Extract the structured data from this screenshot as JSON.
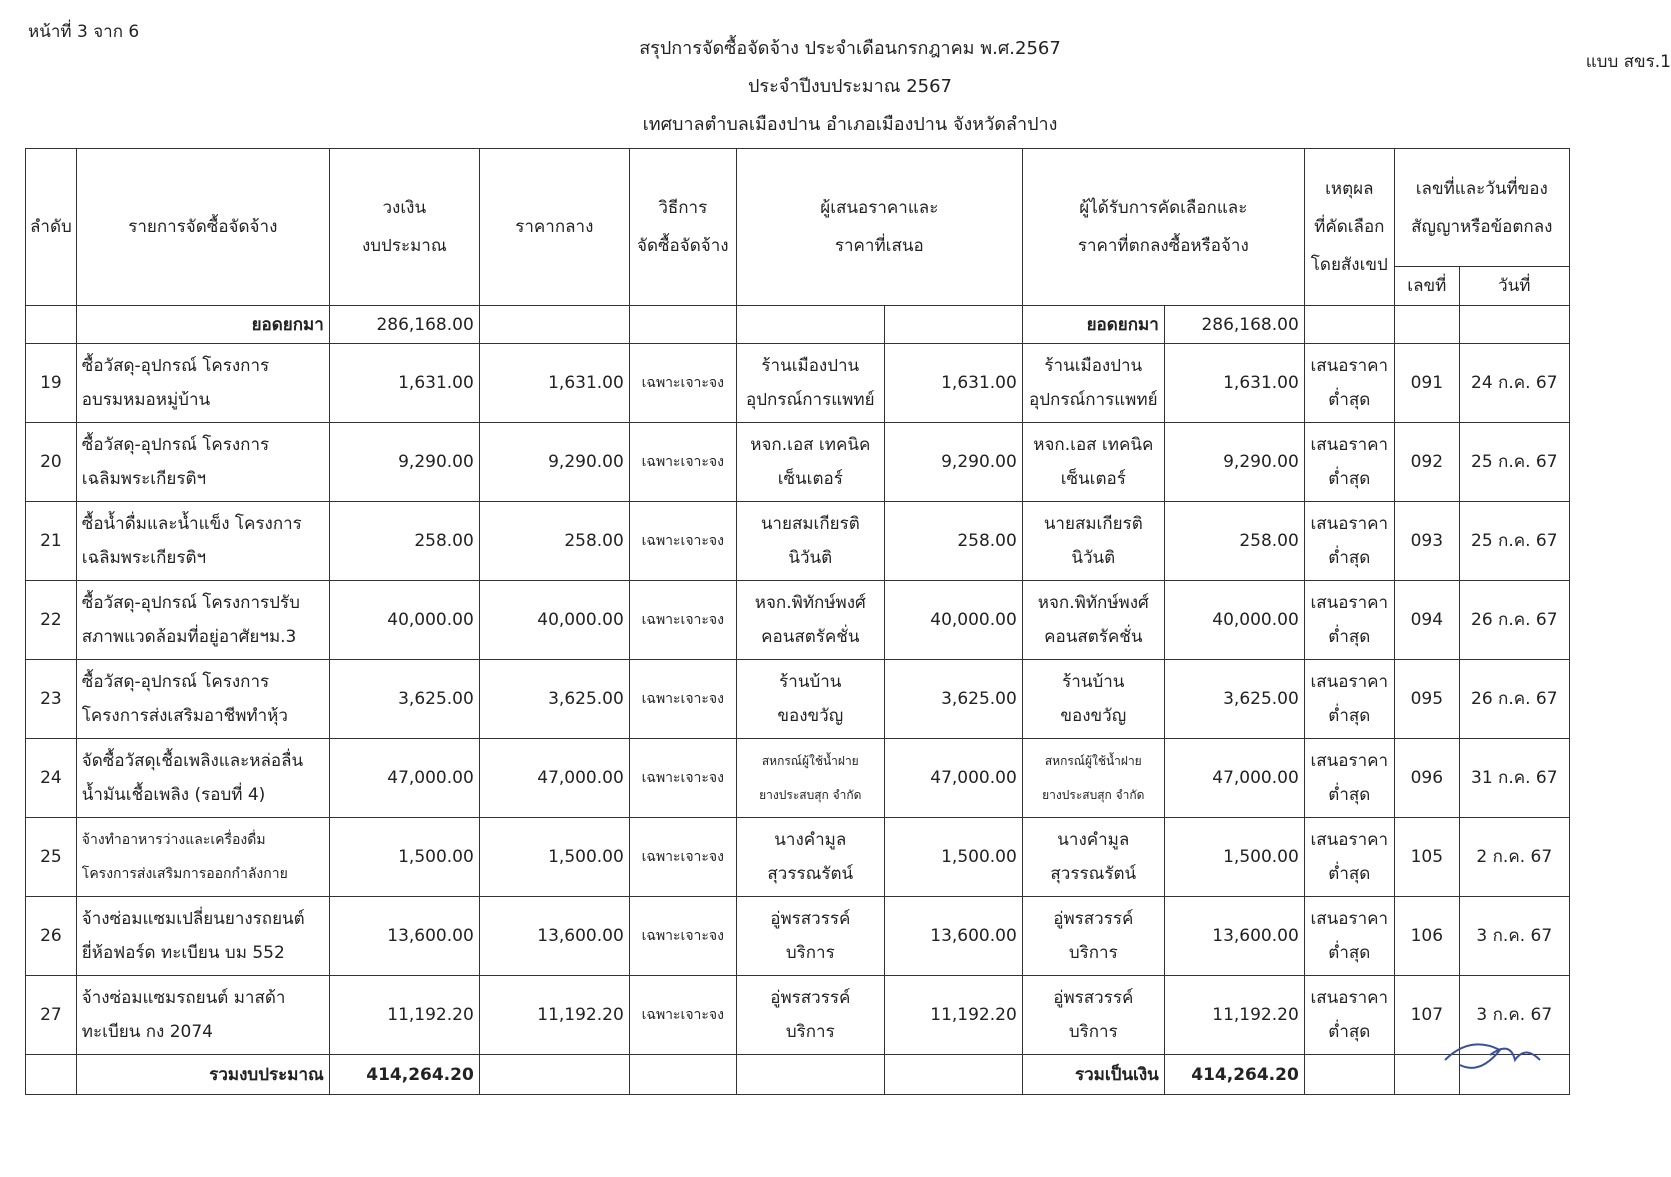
{
  "page_label": "หน้าที่ 3 จาก 6",
  "form_code": "แบบ สขร.1",
  "titles": [
    "สรุปการจัดซื้อจัดจ้าง ประจำเดือนกรกฎาคม พ.ศ.2567",
    "ประจำปีงบประมาณ 2567",
    "เทศบาลตำบลเมืองปาน อำเภอเมืองปาน จังหวัดลำปาง"
  ],
  "headers": {
    "no": "ลำดับ",
    "item": "รายการจัดซื้อจัดจ้าง",
    "budget": "วงเงิน\nงบประมาณ",
    "median": "ราคากลาง",
    "method": "วิธีการ\nจัดซื้อจัดจ้าง",
    "bidder": "ผู้เสนอราคาและ\nราคาที่เสนอ",
    "winner": "ผู้ได้รับการคัดเลือกและ\nราคาที่ตกลงซื้อหรือจ้าง",
    "reason": "เหตุผล\nที่คัดเลือก\nโดยสังเขป",
    "contract": "เลขที่และวันที่ของ\nสัญญาหรือข้อตกลง",
    "contract_no": "เลขที่",
    "contract_date": "วันที่"
  },
  "carried": {
    "label": "ยอดยกมา",
    "budget": "286,168.00",
    "label2": "ยอดยกมา",
    "amount2": "286,168.00"
  },
  "rows": [
    {
      "no": "19",
      "item": "ซื้อวัสดุ-อุปกรณ์ โครงการ\nอบรมหมอหมู่บ้าน",
      "budget": "1,631.00",
      "median": "1,631.00",
      "method": "เฉพาะเจาะจง",
      "bidder": "ร้านเมืองปาน\nอุปกรณ์การแพทย์",
      "bid": "1,631.00",
      "winner": "ร้านเมืองปาน\nอุปกรณ์การแพทย์",
      "price": "1,631.00",
      "reason": "เสนอราคา\nต่ำสุด",
      "cno": "091",
      "cdate": "24 ก.ค. 67"
    },
    {
      "no": "20",
      "item": "ซื้อวัสดุ-อุปกรณ์ โครงการ\nเฉลิมพระเกียรติฯ",
      "budget": "9,290.00",
      "median": "9,290.00",
      "method": "เฉพาะเจาะจง",
      "bidder": "หจก.เอส เทคนิค\nเซ็นเตอร์",
      "bid": "9,290.00",
      "winner": "หจก.เอส เทคนิค\nเซ็นเตอร์",
      "price": "9,290.00",
      "reason": "เสนอราคา\nต่ำสุด",
      "cno": "092",
      "cdate": "25 ก.ค. 67"
    },
    {
      "no": "21",
      "item": "ซื้อน้ำดื่มและน้ำแข็ง โครงการ\nเฉลิมพระเกียรติฯ",
      "budget": "258.00",
      "median": "258.00",
      "method": "เฉพาะเจาะจง",
      "bidder": "นายสมเกียรติ\nนิวันติ",
      "bid": "258.00",
      "winner": "นายสมเกียรติ\nนิวันติ",
      "price": "258.00",
      "reason": "เสนอราคา\nต่ำสุด",
      "cno": "093",
      "cdate": "25 ก.ค. 67"
    },
    {
      "no": "22",
      "item": "ซื้อวัสดุ-อุปกรณ์ โครงการปรับ\nสภาพแวดล้อมที่อยู่อาศัยฯม.3",
      "budget": "40,000.00",
      "median": "40,000.00",
      "method": "เฉพาะเจาะจง",
      "bidder": "หจก.พิทักษ์พงศ์\nคอนสตรัคชั่น",
      "bid": "40,000.00",
      "winner": "หจก.พิทักษ์พงศ์\nคอนสตรัคชั่น",
      "price": "40,000.00",
      "reason": "เสนอราคา\nต่ำสุด",
      "cno": "094",
      "cdate": "26 ก.ค. 67"
    },
    {
      "no": "23",
      "item": "ซื้อวัสดุ-อุปกรณ์ โครงการ\nโครงการส่งเสริมอาชีพทำหุ้ว",
      "budget": "3,625.00",
      "median": "3,625.00",
      "method": "เฉพาะเจาะจง",
      "bidder": "ร้านบ้าน\nของขวัญ",
      "bid": "3,625.00",
      "winner": "ร้านบ้าน\nของขวัญ",
      "price": "3,625.00",
      "reason": "เสนอราคา\nต่ำสุด",
      "cno": "095",
      "cdate": "26 ก.ค. 67"
    },
    {
      "no": "24",
      "item": "จัดซื้อวัสดุเชื้อเพลิงและหล่อลื่น\nน้ำมันเชื้อเพลิง (รอบที่ 4)",
      "budget": "47,000.00",
      "median": "47,000.00",
      "method": "เฉพาะเจาะจง",
      "bidder": "สหกรณ์ผู้ใช้น้ำฝาย\nยางประสบสุก จำกัด",
      "bid": "47,000.00",
      "winner": "สหกรณ์ผู้ใช้น้ำฝาย\nยางประสบสุก จำกัด",
      "price": "47,000.00",
      "reason": "เสนอราคา\nต่ำสุด",
      "cno": "096",
      "cdate": "31 ก.ค. 67"
    },
    {
      "no": "25",
      "item": "จ้างทำอาหารว่างและเครื่องดื่ม\nโครงการส่งเสริมการออกกำลังกาย",
      "budget": "1,500.00",
      "median": "1,500.00",
      "method": "เฉพาะเจาะจง",
      "bidder": "นางคำมูล\nสุวรรณรัตน์",
      "bid": "1,500.00",
      "winner": "นางคำมูล\nสุวรรณรัตน์",
      "price": "1,500.00",
      "reason": "เสนอราคา\nต่ำสุด",
      "cno": "105",
      "cdate": "2 ก.ค. 67"
    },
    {
      "no": "26",
      "item": "จ้างซ่อมแซมเปลี่ยนยางรถยนต์\nยี่ห้อฟอร์ด ทะเบียน บม 552",
      "budget": "13,600.00",
      "median": "13,600.00",
      "method": "เฉพาะเจาะจง",
      "bidder": "อู่พรสวรรค์\nบริการ",
      "bid": "13,600.00",
      "winner": "อู่พรสวรรค์\nบริการ",
      "price": "13,600.00",
      "reason": "เสนอราคา\nต่ำสุด",
      "cno": "106",
      "cdate": "3 ก.ค. 67"
    },
    {
      "no": "27",
      "item": "จ้างซ่อมแซมรถยนต์ มาสด้า\nทะเบียน กง 2074",
      "budget": "11,192.20",
      "median": "11,192.20",
      "method": "เฉพาะเจาะจง",
      "bidder": "อู่พรสวรรค์\nบริการ",
      "bid": "11,192.20",
      "winner": "อู่พรสวรรค์\nบริการ",
      "price": "11,192.20",
      "reason": "เสนอราคา\nต่ำสุด",
      "cno": "107",
      "cdate": "3 ก.ค. 67"
    }
  ],
  "total": {
    "label": "รวมงบประมาณ",
    "budget": "414,264.20",
    "label2": "รวมเป็นเงิน",
    "amount2": "414,264.20"
  }
}
